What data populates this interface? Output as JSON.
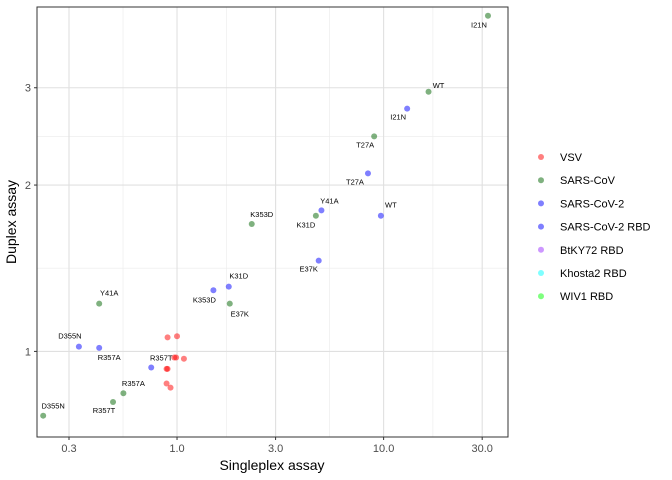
{
  "chart_data": {
    "type": "scatter",
    "xlabel": "Singleplex assay",
    "ylabel": "Duplex assay",
    "x_scale": "log10",
    "y_scale": "log10",
    "xlim": [
      0.21,
      40
    ],
    "ylim": [
      0.7,
      4.2
    ],
    "x_ticks": [
      0.3,
      1.0,
      3.0,
      10.0,
      30.0
    ],
    "x_tick_labels": [
      "0.3",
      "1.0",
      "3.0",
      "10.0",
      "30.0"
    ],
    "y_ticks": [
      1,
      2,
      3
    ],
    "y_tick_labels": [
      "1",
      "2",
      "3"
    ],
    "grid": true,
    "legend_position": "right",
    "legend": [
      {
        "name": "VSV",
        "color": "#ff0000"
      },
      {
        "name": "SARS-CoV",
        "color": "#006400"
      },
      {
        "name": "SARS-CoV-2",
        "color": "#0000ff"
      },
      {
        "name": "SARS-CoV-2 RBD",
        "color": "#0000ff"
      },
      {
        "name": "BtKY72 RBD",
        "color": "#9b30ff"
      },
      {
        "name": "Khosta2 RBD",
        "color": "#00ffff"
      },
      {
        "name": "WIV1 RBD",
        "color": "#00ff00"
      }
    ],
    "points": [
      {
        "series": "VSV",
        "x": 0.9,
        "y": 1.06,
        "label": ""
      },
      {
        "series": "VSV",
        "x": 1.0,
        "y": 1.065,
        "label": ""
      },
      {
        "series": "VSV",
        "x": 0.97,
        "y": 0.975,
        "label": ""
      },
      {
        "series": "VSV",
        "x": 0.99,
        "y": 0.975,
        "label": ""
      },
      {
        "series": "VSV",
        "x": 1.08,
        "y": 0.97,
        "label": ""
      },
      {
        "series": "VSV",
        "x": 0.9,
        "y": 0.93,
        "label": ""
      },
      {
        "series": "VSV",
        "x": 0.89,
        "y": 0.93,
        "label": ""
      },
      {
        "series": "VSV",
        "x": 0.89,
        "y": 0.875,
        "label": ""
      },
      {
        "series": "VSV",
        "x": 0.93,
        "y": 0.86,
        "label": ""
      },
      {
        "series": "SARS-CoV",
        "x": 32,
        "y": 4.05,
        "label": "I21N",
        "label_dx": -9,
        "label_dy": 12
      },
      {
        "series": "SARS-CoV",
        "x": 16.5,
        "y": 2.95,
        "label": "WT",
        "label_dx": 10,
        "label_dy": -4
      },
      {
        "series": "SARS-CoV",
        "x": 9.0,
        "y": 2.45,
        "label": "T27A",
        "label_dx": -9,
        "label_dy": 11
      },
      {
        "series": "SARS-CoV",
        "x": 2.3,
        "y": 1.7,
        "label": "K353D",
        "label_dx": 10,
        "label_dy": -7
      },
      {
        "series": "SARS-CoV",
        "x": 4.7,
        "y": 1.76,
        "label": "K31D",
        "label_dx": -10,
        "label_dy": 12
      },
      {
        "series": "SARS-CoV",
        "x": 1.8,
        "y": 1.22,
        "label": "E37K",
        "label_dx": 10,
        "label_dy": 13
      },
      {
        "series": "SARS-CoV",
        "x": 0.42,
        "y": 1.22,
        "label": "Y41A",
        "label_dx": 10,
        "label_dy": -8
      },
      {
        "series": "SARS-CoV",
        "x": 0.55,
        "y": 0.84,
        "label": "R357A",
        "label_dx": 10,
        "label_dy": -7
      },
      {
        "series": "SARS-CoV",
        "x": 0.49,
        "y": 0.81,
        "label": "R357T",
        "label_dx": -9,
        "label_dy": 11
      },
      {
        "series": "SARS-CoV",
        "x": 0.225,
        "y": 0.765,
        "label": "D355N",
        "label_dx": 10,
        "label_dy": -7
      },
      {
        "series": "SARS-CoV-2",
        "x": 13,
        "y": 2.75,
        "label": "I21N",
        "label_dx": -9,
        "label_dy": 11
      },
      {
        "series": "SARS-CoV-2",
        "x": 8.4,
        "y": 2.1,
        "label": "T27A",
        "label_dx": -13,
        "label_dy": 11
      },
      {
        "series": "SARS-CoV-2",
        "x": 5.0,
        "y": 1.8,
        "label": "Y41A",
        "label_dx": 8,
        "label_dy": -7
      },
      {
        "series": "SARS-CoV-2",
        "x": 9.7,
        "y": 1.76,
        "label": "WT",
        "label_dx": 10,
        "label_dy": -8
      },
      {
        "series": "SARS-CoV-2",
        "x": 4.85,
        "y": 1.46,
        "label": "E37K",
        "label_dx": -10,
        "label_dy": 11
      },
      {
        "series": "SARS-CoV-2",
        "x": 1.78,
        "y": 1.31,
        "label": "K31D",
        "label_dx": 10,
        "label_dy": -8
      },
      {
        "series": "SARS-CoV-2",
        "x": 1.5,
        "y": 1.29,
        "label": "K353D",
        "label_dx": -9,
        "label_dy": 12
      },
      {
        "series": "SARS-CoV-2",
        "x": 0.335,
        "y": 1.02,
        "label": "D355N",
        "label_dx": -9,
        "label_dy": -8
      },
      {
        "series": "SARS-CoV-2",
        "x": 0.42,
        "y": 1.015,
        "label": "R357A",
        "label_dx": 10,
        "label_dy": 12
      },
      {
        "series": "SARS-CoV-2",
        "x": 0.75,
        "y": 0.935,
        "label": "R357T",
        "label_dx": 10,
        "label_dy": -7
      }
    ]
  }
}
